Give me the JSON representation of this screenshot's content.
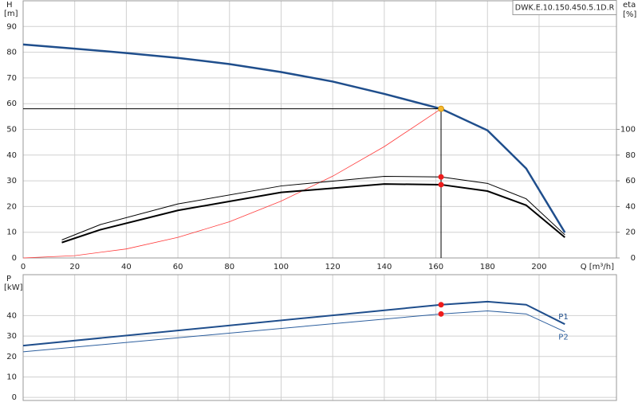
{
  "chart_data": [
    {
      "type": "line",
      "title": "DWK.E.10.150.450.5.1D.R",
      "xlabel": "Q [m³/h]",
      "ylabel": "H",
      "yunit": "[m]",
      "y2label": "eta",
      "y2unit": "[%]",
      "xlim": [
        0,
        230
      ],
      "xticks": [
        0,
        20,
        40,
        60,
        80,
        100,
        120,
        140,
        160,
        180,
        200
      ],
      "xtick_labels": true,
      "ylim": [
        0,
        100
      ],
      "yticks": [
        0,
        10,
        20,
        30,
        40,
        50,
        60,
        70,
        80,
        90
      ],
      "y2lim": [
        0,
        200
      ],
      "y2ticks": [
        0,
        20,
        40,
        60,
        80,
        100
      ],
      "grid": true,
      "series": [
        {
          "color": "#1f4e8c",
          "width": 2.5,
          "x": [
            0,
            20,
            40,
            60,
            80,
            100,
            120,
            140,
            162,
            180,
            195,
            210
          ],
          "values": [
            83,
            81.4,
            79.7,
            77.8,
            75.4,
            72.3,
            68.6,
            63.8,
            58,
            49.6,
            34.8,
            9.9
          ]
        },
        {
          "color": "#ff3b3b",
          "width": 0.8,
          "x": [
            0,
            20,
            40,
            60,
            80,
            100,
            120,
            140,
            162
          ],
          "values": [
            0,
            0.9,
            3.5,
            8,
            14.1,
            22.1,
            31.8,
            43.3,
            58
          ]
        },
        {
          "color": "#000000",
          "width": 1,
          "axis": "y2",
          "x": [
            15,
            30,
            60,
            100,
            140,
            162,
            180,
            195,
            210
          ],
          "values": [
            14,
            26,
            42,
            56,
            63.5,
            63,
            58,
            46,
            18
          ]
        },
        {
          "color": "#000000",
          "width": 2,
          "axis": "y2",
          "x": [
            15,
            30,
            60,
            100,
            140,
            162,
            180,
            195,
            210
          ],
          "values": [
            12,
            22,
            37,
            51,
            57.5,
            57,
            52,
            41,
            16
          ]
        },
        {
          "color": "#f5b82e",
          "marker": "point",
          "guides": true,
          "x": [
            162
          ],
          "values": [
            58
          ]
        },
        {
          "color": "#ee1c1c",
          "marker": "point",
          "axis": "y2",
          "x": [
            162,
            162
          ],
          "values": [
            63,
            57
          ]
        }
      ]
    },
    {
      "type": "line",
      "ylabel": "P",
      "yunit": "[kW]",
      "xlim": [
        0,
        230
      ],
      "xticks": [
        0,
        20,
        40,
        60,
        80,
        100,
        120,
        140,
        160,
        180,
        200
      ],
      "xtick_labels": false,
      "ylim": [
        -1.5,
        60
      ],
      "yticks": [
        0,
        10,
        20,
        30,
        40
      ],
      "grid": true,
      "series": [
        {
          "name": "P1",
          "color": "#1f4e8c",
          "width": 2,
          "x": [
            0,
            162,
            180,
            195,
            210
          ],
          "values": [
            25.3,
            45.3,
            46.8,
            45.3,
            35.8
          ]
        },
        {
          "name": "P2",
          "color": "#2d5f9e",
          "width": 1,
          "x": [
            0,
            162,
            180,
            195,
            210
          ],
          "values": [
            22.3,
            40.8,
            42.3,
            40.8,
            32.1
          ]
        },
        {
          "color": "#ee1c1c",
          "marker": "point",
          "x": [
            162,
            162
          ],
          "values": [
            45.3,
            40.8
          ]
        }
      ]
    }
  ]
}
